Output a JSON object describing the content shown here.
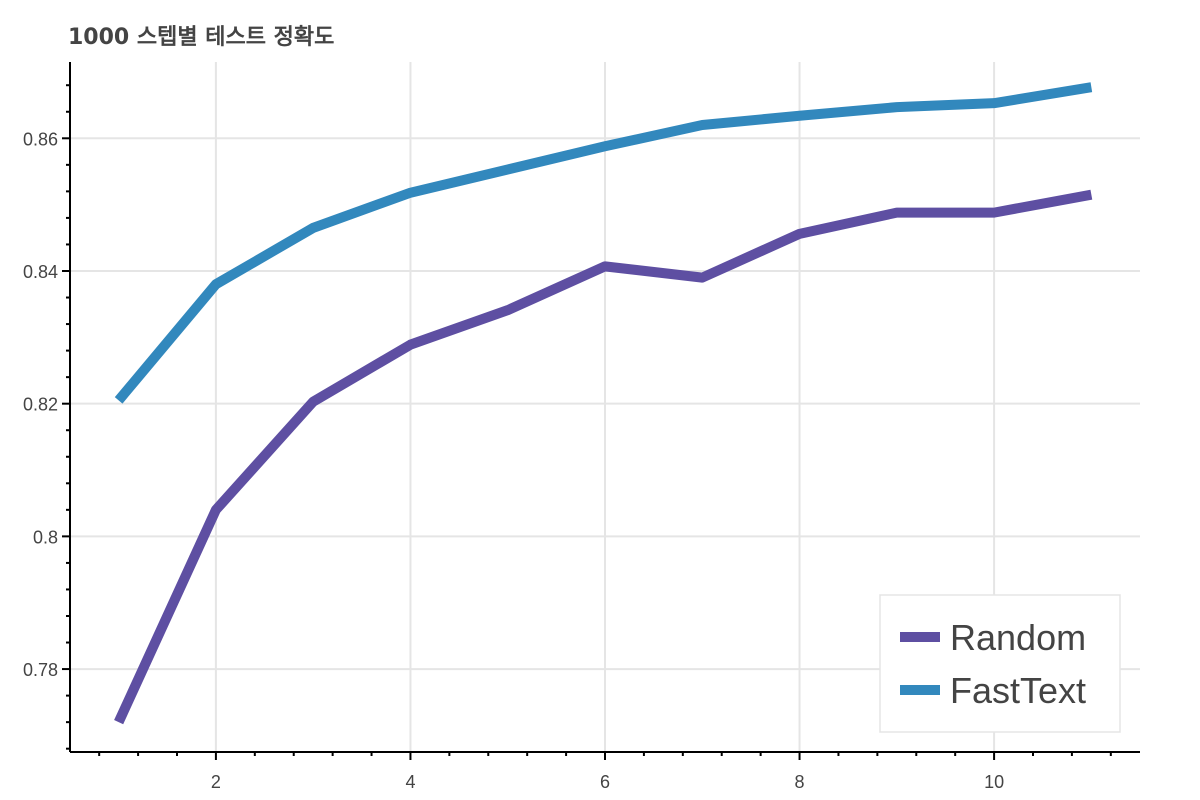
{
  "chart_data": {
    "type": "line",
    "title": "1000 스텝별 테스트 정확도",
    "xlabel": "",
    "ylabel": "",
    "x": [
      1,
      2,
      3,
      4,
      5,
      6,
      7,
      8,
      9,
      10,
      11
    ],
    "xlim": [
      0.5,
      11.5
    ],
    "ylim": [
      0.7675,
      0.8715
    ],
    "x_ticks": [
      2,
      4,
      6,
      8,
      10
    ],
    "y_ticks": [
      0.78,
      0.8,
      0.82,
      0.84,
      0.86
    ],
    "x_tick_labels": [
      "2",
      "4",
      "6",
      "8",
      "10"
    ],
    "y_tick_labels": [
      "0.78",
      "0.8",
      "0.82",
      "0.84",
      "0.86"
    ],
    "grid": true,
    "legend_position": "bottom-right",
    "series": [
      {
        "name": "Random",
        "color": "#5e4fa2",
        "values": [
          0.772,
          0.804,
          0.8203,
          0.8289,
          0.8341,
          0.8407,
          0.839,
          0.8456,
          0.8488,
          0.8488,
          0.8515
        ]
      },
      {
        "name": "FastText",
        "color": "#3288bd",
        "values": [
          0.8205,
          0.838,
          0.8465,
          0.8518,
          0.8553,
          0.8588,
          0.862,
          0.8634,
          0.8647,
          0.8653,
          0.8677
        ]
      }
    ]
  }
}
